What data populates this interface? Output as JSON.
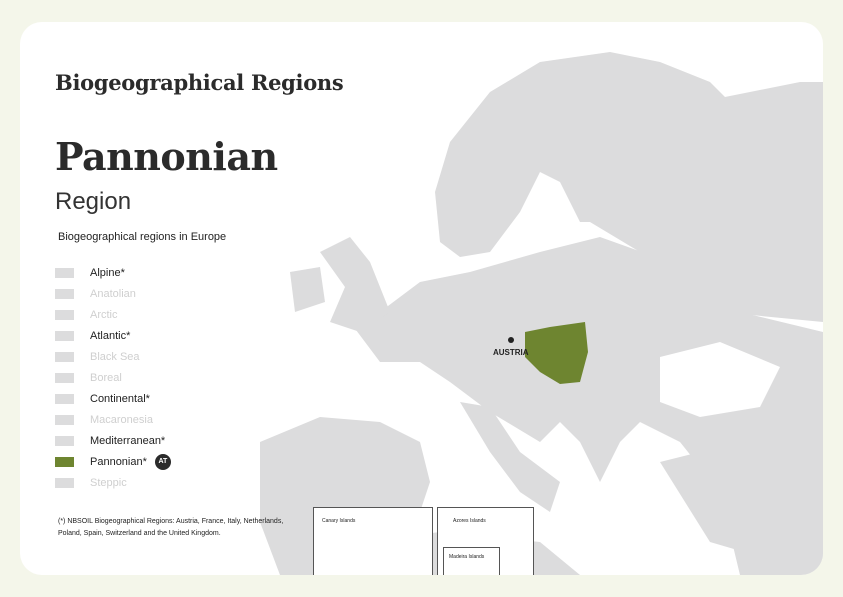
{
  "header": {
    "title": "Biogeographical Regions",
    "region_name": "Pannonian",
    "region_word": "Region",
    "subtitle": "Biogeographical regions in Europe"
  },
  "legend": [
    {
      "label": "Alpine*",
      "active": true,
      "color": "#dcdcdd"
    },
    {
      "label": "Anatolian",
      "active": false,
      "color": "#dcdcdd"
    },
    {
      "label": "Arctic",
      "active": false,
      "color": "#dcdcdd"
    },
    {
      "label": "Atlantic*",
      "active": true,
      "color": "#dcdcdd"
    },
    {
      "label": "Black Sea",
      "active": false,
      "color": "#dcdcdd"
    },
    {
      "label": "Boreal",
      "active": false,
      "color": "#dcdcdd"
    },
    {
      "label": "Continental*",
      "active": true,
      "color": "#dcdcdd"
    },
    {
      "label": "Macaronesia",
      "active": false,
      "color": "#dcdcdd"
    },
    {
      "label": "Mediterranean*",
      "active": true,
      "color": "#dcdcdd"
    },
    {
      "label": "Pannonian*",
      "active": true,
      "color": "#6e8530",
      "badge": "AT"
    },
    {
      "label": "Steppic",
      "active": false,
      "color": "#dcdcdd"
    }
  ],
  "footnote": "(*) NBSOIL Biogeographical Regions: Austria, France, Italy, Netherlands, Poland, Spain, Switzerland and the United Kingdom.",
  "map": {
    "marker_label": "AUSTRIA",
    "highlight_color": "#6e8530",
    "land_color": "#dcdcdd",
    "insets": {
      "canary": "Canary Islands",
      "azores": "Azores Islands",
      "madeira": "Madeira Islands"
    }
  }
}
